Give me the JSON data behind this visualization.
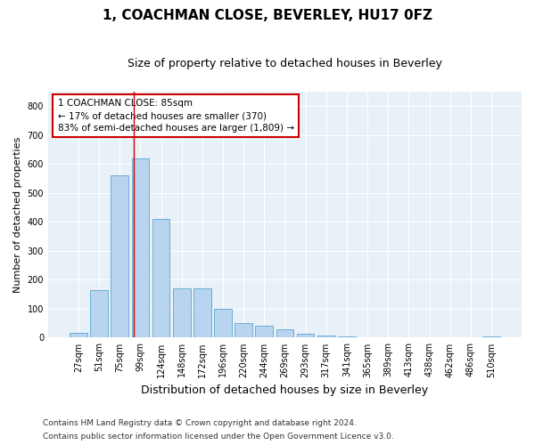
{
  "title": "1, COACHMAN CLOSE, BEVERLEY, HU17 0FZ",
  "subtitle": "Size of property relative to detached houses in Beverley",
  "xlabel": "Distribution of detached houses by size in Beverley",
  "ylabel": "Number of detached properties",
  "bar_color": "#b8d4ee",
  "bar_edge_color": "#6aaed6",
  "background_color": "#e8f0f8",
  "grid_color": "#ffffff",
  "categories": [
    "27sqm",
    "51sqm",
    "75sqm",
    "99sqm",
    "124sqm",
    "148sqm",
    "172sqm",
    "196sqm",
    "220sqm",
    "244sqm",
    "269sqm",
    "293sqm",
    "317sqm",
    "341sqm",
    "365sqm",
    "389sqm",
    "413sqm",
    "438sqm",
    "462sqm",
    "486sqm",
    "510sqm"
  ],
  "values": [
    18,
    165,
    560,
    620,
    410,
    170,
    170,
    100,
    52,
    40,
    30,
    13,
    8,
    5,
    2,
    2,
    1,
    0,
    0,
    0,
    5
  ],
  "property_line_x": 2.67,
  "property_line_color": "#cc0000",
  "annotation_text": "1 COACHMAN CLOSE: 85sqm\n← 17% of detached houses are smaller (370)\n83% of semi-detached houses are larger (1,809) →",
  "annotation_box_color": "#ffffff",
  "annotation_box_edge_color": "#cc0000",
  "ylim": [
    0,
    850
  ],
  "yticks": [
    0,
    100,
    200,
    300,
    400,
    500,
    600,
    700,
    800
  ],
  "footer_line1": "Contains HM Land Registry data © Crown copyright and database right 2024.",
  "footer_line2": "Contains public sector information licensed under the Open Government Licence v3.0.",
  "title_fontsize": 11,
  "subtitle_fontsize": 9,
  "annotation_fontsize": 7.5,
  "footer_fontsize": 6.5,
  "ylabel_fontsize": 8,
  "xlabel_fontsize": 9,
  "tick_fontsize": 7
}
